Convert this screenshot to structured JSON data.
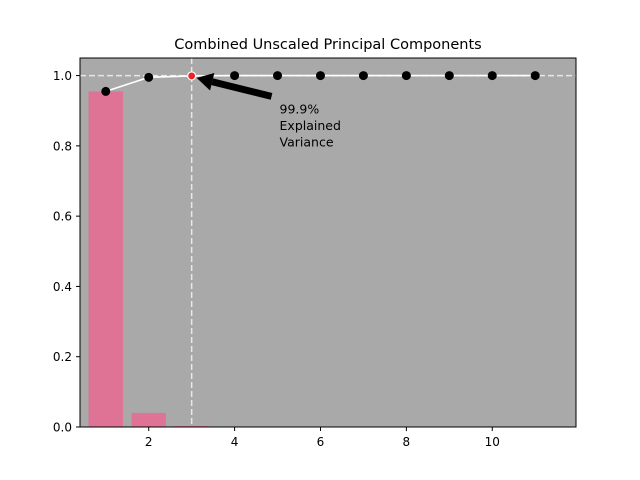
{
  "chart_data": {
    "type": "bar",
    "title": "Combined Unscaled Principal Components",
    "xlabel": "",
    "ylabel": "",
    "xlim": [
      0.4,
      11.95
    ],
    "ylim": [
      0.0,
      1.05
    ],
    "xticks": [
      2,
      4,
      6,
      8,
      10
    ],
    "yticks": [
      0.0,
      0.2,
      0.4,
      0.6,
      0.8,
      1.0
    ],
    "background": "#a9a9a9",
    "bar_color": "#de7395",
    "bars": {
      "x": [
        1,
        2,
        3,
        4,
        5,
        6,
        7,
        8,
        9,
        10,
        11
      ],
      "values": [
        0.955,
        0.04,
        0.003,
        0.0005,
        0.0003,
        0.0002,
        0.0001,
        0.0001,
        0.0,
        0.0,
        0.0
      ]
    },
    "cumulative": {
      "x": [
        1,
        2,
        3,
        4,
        5,
        6,
        7,
        8,
        9,
        10,
        11
      ],
      "values": [
        0.955,
        0.995,
        0.999,
        1.0,
        1.0,
        1.0,
        1.0,
        1.0,
        1.0,
        1.0,
        1.0
      ],
      "line_color": "#ffffff",
      "marker_color": "#000000",
      "highlight_index": 2,
      "highlight_color": "#e8242a"
    },
    "reference_lines": {
      "hline_y": 1.0,
      "vline_x": 3
    },
    "annotation": {
      "lines": [
        "99.9%",
        "Explained",
        "Variance"
      ],
      "text_x": 5.0,
      "text_y": 0.955,
      "arrow_to_x": 3.0,
      "arrow_to_y": 0.999
    }
  }
}
